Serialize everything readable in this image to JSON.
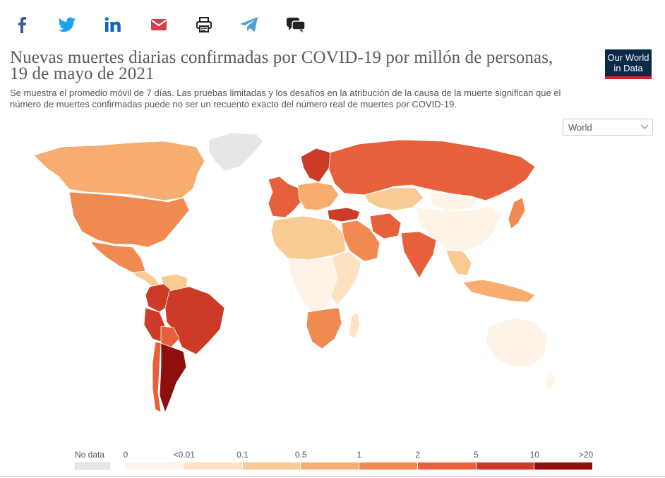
{
  "share": {
    "icons": [
      "facebook-icon",
      "twitter-icon",
      "linkedin-icon",
      "email-icon",
      "print-icon",
      "telegram-icon",
      "comments-icon"
    ],
    "colors": {
      "facebook": "#3b5998",
      "twitter": "#1da1f2",
      "linkedin": "#0a66c2",
      "email": "#d2404b",
      "telegram": "#4f9fd6",
      "dark": "#222222"
    }
  },
  "header": {
    "title_line1": "Nuevas muertes diarias confirmadas por COVID-19 por millón de personas,",
    "title_line2": "19 de mayo de 2021",
    "subtitle_line1": "Se muestra el promedio móvil de 7 días. Las pruebas limitadas y los desafíos en la atribución de la causa de la muerte significan que el",
    "subtitle_line2": "número de muertes confirmadas puede no ser un recuento exacto del número real de muertes por COVID-19."
  },
  "logo": {
    "line1": "Our World",
    "line2": "in Data",
    "bg": "#0b2a4a",
    "accent": "#ce261e"
  },
  "region_select": {
    "value": "World"
  },
  "legend": {
    "nodata_label": "No data",
    "ticks": [
      "0",
      "<0.01",
      "0.1",
      "0.5",
      "1",
      "2",
      "5",
      "10",
      ">20"
    ],
    "colors": [
      "#fdf3e6",
      "#fce2c0",
      "#f9ca94",
      "#f6ad6f",
      "#f08a50",
      "#e6603c",
      "#cc3a28",
      "#8f0e0e"
    ],
    "nodata_color": "#e6e6e6"
  },
  "map": {
    "regions": [
      {
        "name": "Canada",
        "color": "#f6ad6f"
      },
      {
        "name": "Greenland",
        "color": "#e6e6e6"
      },
      {
        "name": "United States",
        "color": "#f08a50"
      },
      {
        "name": "Mexico",
        "color": "#f08a50"
      },
      {
        "name": "Central America",
        "color": "#f9ca94"
      },
      {
        "name": "Colombia",
        "color": "#cc3a28"
      },
      {
        "name": "Venezuela",
        "color": "#f9ca94"
      },
      {
        "name": "Brazil",
        "color": "#cc3a28"
      },
      {
        "name": "Peru",
        "color": "#cc3a28"
      },
      {
        "name": "Bolivia",
        "color": "#e6603c"
      },
      {
        "name": "Argentina",
        "color": "#8f0e0e"
      },
      {
        "name": "Chile",
        "color": "#e6603c"
      },
      {
        "name": "Western Europe",
        "color": "#e6603c"
      },
      {
        "name": "Central Europe",
        "color": "#cc3a28"
      },
      {
        "name": "Scandinavia",
        "color": "#f6ad6f"
      },
      {
        "name": "Russia",
        "color": "#e6603c"
      },
      {
        "name": "Kazakhstan",
        "color": "#f9ca94"
      },
      {
        "name": "Turkey",
        "color": "#cc3a28"
      },
      {
        "name": "Middle East",
        "color": "#f08a50"
      },
      {
        "name": "Iran",
        "color": "#e6603c"
      },
      {
        "name": "India",
        "color": "#e6603c"
      },
      {
        "name": "China",
        "color": "#fdf3e6"
      },
      {
        "name": "Mongolia",
        "color": "#fdf3e6"
      },
      {
        "name": "Japan",
        "color": "#f08a50"
      },
      {
        "name": "Southeast Asia",
        "color": "#f9ca94"
      },
      {
        "name": "Indonesia",
        "color": "#f6ad6f"
      },
      {
        "name": "North Africa",
        "color": "#f9ca94"
      },
      {
        "name": "Central Africa",
        "color": "#fdf3e6"
      },
      {
        "name": "East Africa",
        "color": "#fce2c0"
      },
      {
        "name": "Southern Africa",
        "color": "#f08a50"
      },
      {
        "name": "Madagascar",
        "color": "#fce2c0"
      },
      {
        "name": "Australia",
        "color": "#fdf3e6"
      },
      {
        "name": "New Zealand",
        "color": "#fdf3e6"
      }
    ]
  }
}
